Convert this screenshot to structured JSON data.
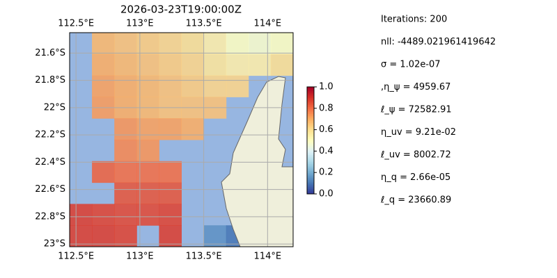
{
  "chart_data": {
    "type": "heatmap",
    "title": "2026-03-23T19:00:00Z",
    "xlim": [
      112.45,
      114.2
    ],
    "ylim": [
      -21.45,
      -23.02
    ],
    "xticks": [
      {
        "value": 112.5,
        "label": "112.5°E"
      },
      {
        "value": 113,
        "label": "113°E"
      },
      {
        "value": 113.5,
        "label": "113.5°E"
      },
      {
        "value": 114,
        "label": "114°E"
      }
    ],
    "yticks": [
      {
        "value": -21.6,
        "label": "21.6°S"
      },
      {
        "value": -21.8,
        "label": "21.8°S"
      },
      {
        "value": -22,
        "label": "22°S"
      },
      {
        "value": -22.2,
        "label": "22.2°S"
      },
      {
        "value": -22.4,
        "label": "22.4°S"
      },
      {
        "value": -22.6,
        "label": "22.6°S"
      },
      {
        "value": -22.8,
        "label": "22.8°S"
      },
      {
        "value": -23,
        "label": "23°S"
      }
    ],
    "grid": true,
    "z": [
      [
        null,
        0.68,
        0.66,
        0.64,
        0.62,
        0.6,
        0.55,
        0.5,
        0.48,
        0.5
      ],
      [
        null,
        0.7,
        0.68,
        0.66,
        0.64,
        0.62,
        0.58,
        0.55,
        0.55,
        0.6
      ],
      [
        null,
        0.72,
        0.7,
        0.68,
        0.66,
        0.64,
        0.62,
        0.62,
        null,
        null
      ],
      [
        null,
        0.73,
        0.7,
        0.68,
        0.66,
        0.66,
        0.66,
        null,
        null,
        null
      ],
      [
        null,
        null,
        0.74,
        0.72,
        0.72,
        0.7,
        null,
        null,
        null,
        null
      ],
      [
        null,
        null,
        0.76,
        0.74,
        null,
        null,
        null,
        null,
        null,
        null
      ],
      [
        null,
        0.82,
        0.8,
        0.8,
        0.8,
        null,
        null,
        null,
        null,
        null
      ],
      [
        null,
        null,
        0.84,
        0.84,
        0.84,
        null,
        null,
        null,
        null,
        null
      ],
      [
        0.88,
        0.87,
        0.86,
        0.86,
        0.87,
        null,
        null,
        null,
        null,
        null
      ],
      [
        0.88,
        0.88,
        0.87,
        null,
        0.88,
        null,
        0.15,
        0.1,
        null,
        null
      ]
    ],
    "colorbar": {
      "lim": [
        0,
        1
      ],
      "ticks": [
        {
          "value": 0,
          "label": "0.0"
        },
        0.2,
        0.4,
        0.6,
        0.8,
        {
          "value": 1,
          "label": "1.0"
        }
      ]
    }
  },
  "info": [
    "Iterations: 200",
    "nll: -4489.021961419642",
    "σ = 1.02e-07",
    ",η_ψ = 4959.67",
    "ℓ_ψ = 72582.91",
    "η_uv = 9.21e-02",
    "ℓ_uv = 8002.72",
    "η_q = 2.66e-05",
    "ℓ_q = 23660.89"
  ]
}
